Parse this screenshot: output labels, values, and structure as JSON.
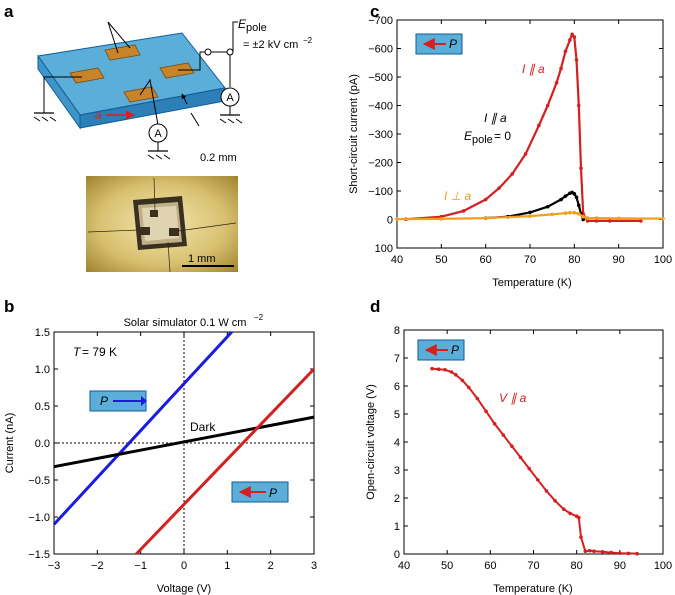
{
  "panel_labels": {
    "a": "a",
    "b": "b",
    "c": "c",
    "d": "d"
  },
  "panel_a": {
    "epole_symbol": "E",
    "epole_sub": "pole",
    "epole_value": "= ±2 kV cm",
    "epole_exp": "−2",
    "ammeter": "A",
    "axis_label": "a",
    "thickness": "0.2 mm",
    "scale_bar": "1 mm"
  },
  "colors": {
    "red": "#d42020",
    "blue": "#1a1ae0",
    "black": "#000000",
    "orange": "#f0a020",
    "box_fill": "#5aaed8",
    "box_stroke": "#0d5e9a"
  },
  "chart_data": [
    {
      "id": "b",
      "type": "line",
      "title": "Solar simulator 0.1 W cm",
      "title_exp": "−2",
      "xlabel": "Voltage (V)",
      "ylabel": "Current (nA)",
      "xlim": [
        -3,
        3
      ],
      "ylim": [
        -1.5,
        1.5
      ],
      "xticks": [
        "−3",
        "−2",
        "−1",
        "0",
        "1",
        "2",
        "3"
      ],
      "yticks": [
        "1.5",
        "1.0",
        "0.5",
        "0.0",
        "−0.5",
        "−1.0",
        "−1.5"
      ],
      "annotations": {
        "temperature_symbol": "T",
        "temperature_value": "= 79 K",
        "dark_label": "Dark",
        "p_label": "P"
      },
      "series": [
        {
          "name": "P right (blue)",
          "color": "#1a1ae0",
          "x": [
            -3.0,
            1.1
          ],
          "y": [
            -1.1,
            1.5
          ]
        },
        {
          "name": "Dark",
          "color": "#000000",
          "x": [
            -3.0,
            3.0
          ],
          "y": [
            -0.32,
            0.35
          ]
        },
        {
          "name": "P left (red)",
          "color": "#d42020",
          "x": [
            -1.1,
            3.0
          ],
          "y": [
            -1.5,
            1.0
          ]
        }
      ]
    },
    {
      "id": "c",
      "type": "line",
      "xlabel": "Temperature (K)",
      "ylabel": "Short-circuit current (pA)",
      "xlim": [
        40,
        100
      ],
      "ylim": [
        -700,
        100
      ],
      "xticks": [
        "40",
        "50",
        "60",
        "70",
        "80",
        "90",
        "100"
      ],
      "yticks": [
        "−700",
        "−600",
        "−500",
        "−400",
        "−300",
        "−200",
        "−100",
        "0",
        "100"
      ],
      "annotations": {
        "i_par_a": "I ∥ a",
        "i_par_a_zero_line1": "I ∥ a",
        "epole_zero_symbol": "E",
        "epole_zero_sub": "pole",
        "epole_zero_value": "= 0",
        "i_perp_a": "I ⊥ a",
        "p_label": "P"
      },
      "series": [
        {
          "name": "I ∥ a",
          "color": "#d42020",
          "x": [
            42,
            50,
            55,
            60,
            63,
            66,
            69,
            72,
            74,
            76,
            77,
            78,
            79,
            79.5,
            80,
            80.5,
            81,
            81.5,
            82,
            83,
            85,
            88,
            95
          ],
          "y": [
            -1,
            -10,
            -30,
            -70,
            -110,
            -160,
            -230,
            -330,
            -400,
            -480,
            -530,
            -590,
            -630,
            -650,
            -640,
            -560,
            -400,
            -180,
            -20,
            5,
            5,
            5,
            5
          ]
        },
        {
          "name": "I ∥ a, Epole = 0",
          "color": "#000000",
          "x": [
            60,
            65,
            70,
            74,
            77,
            78,
            79,
            79.5,
            80,
            80.5,
            81,
            81.5,
            82
          ],
          "y": [
            -5,
            -10,
            -25,
            -45,
            -70,
            -82,
            -92,
            -95,
            -90,
            -78,
            -50,
            -20,
            0
          ]
        },
        {
          "name": "I ⊥ a",
          "color": "#f0a020",
          "x": [
            40,
            50,
            60,
            70,
            75,
            78,
            79,
            80,
            81,
            82,
            83,
            85,
            90,
            100
          ],
          "y": [
            -1,
            -2,
            -5,
            -12,
            -18,
            -22,
            -24,
            -24,
            -20,
            -10,
            -5,
            -5,
            -4,
            -3
          ]
        }
      ]
    },
    {
      "id": "d",
      "type": "line",
      "xlabel": "Temperature (K)",
      "ylabel": "Open-circuit voltage (V)",
      "xlim": [
        40,
        100
      ],
      "ylim": [
        0,
        8
      ],
      "xticks": [
        "40",
        "50",
        "60",
        "70",
        "80",
        "90",
        "100"
      ],
      "yticks": [
        "0",
        "1",
        "2",
        "3",
        "4",
        "5",
        "6",
        "7",
        "8"
      ],
      "annotations": {
        "v_par_a": "V ∥ a",
        "p_label": "P"
      },
      "series": [
        {
          "name": "V ∥ a",
          "color": "#d42020",
          "x": [
            46.5,
            48,
            49.5,
            51,
            52,
            53.5,
            55,
            57,
            59,
            61,
            63,
            65,
            67,
            69,
            71,
            73,
            75,
            77,
            78.5,
            80,
            80.5,
            81,
            82,
            83,
            84,
            86,
            88,
            90,
            92,
            94
          ],
          "y": [
            6.62,
            6.6,
            6.58,
            6.5,
            6.4,
            6.2,
            5.95,
            5.55,
            5.1,
            4.65,
            4.25,
            3.85,
            3.45,
            3.05,
            2.65,
            2.25,
            1.9,
            1.6,
            1.45,
            1.35,
            1.3,
            0.6,
            0.1,
            0.12,
            0.1,
            0.08,
            0.05,
            0.03,
            0.02,
            0.01
          ]
        }
      ]
    }
  ]
}
